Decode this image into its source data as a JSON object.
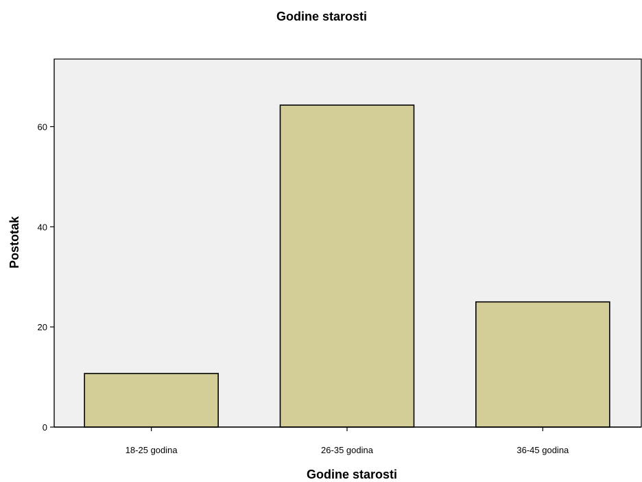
{
  "chart_data": {
    "type": "bar",
    "title": "Godine starosti",
    "xlabel": "Godine starosti",
    "ylabel": "Postotak",
    "categories": [
      "18-25 godina",
      "26-35 godina",
      "36-45 godina"
    ],
    "values": [
      10.7,
      64.3,
      25.0
    ],
    "ylim": [
      0,
      73.5
    ],
    "yticks": [
      0,
      20,
      40,
      60
    ],
    "grid": false,
    "colors": {
      "bar_fill": "#d3cd98",
      "bar_stroke": "#000000",
      "plot_background": "#f0f0f0"
    }
  }
}
